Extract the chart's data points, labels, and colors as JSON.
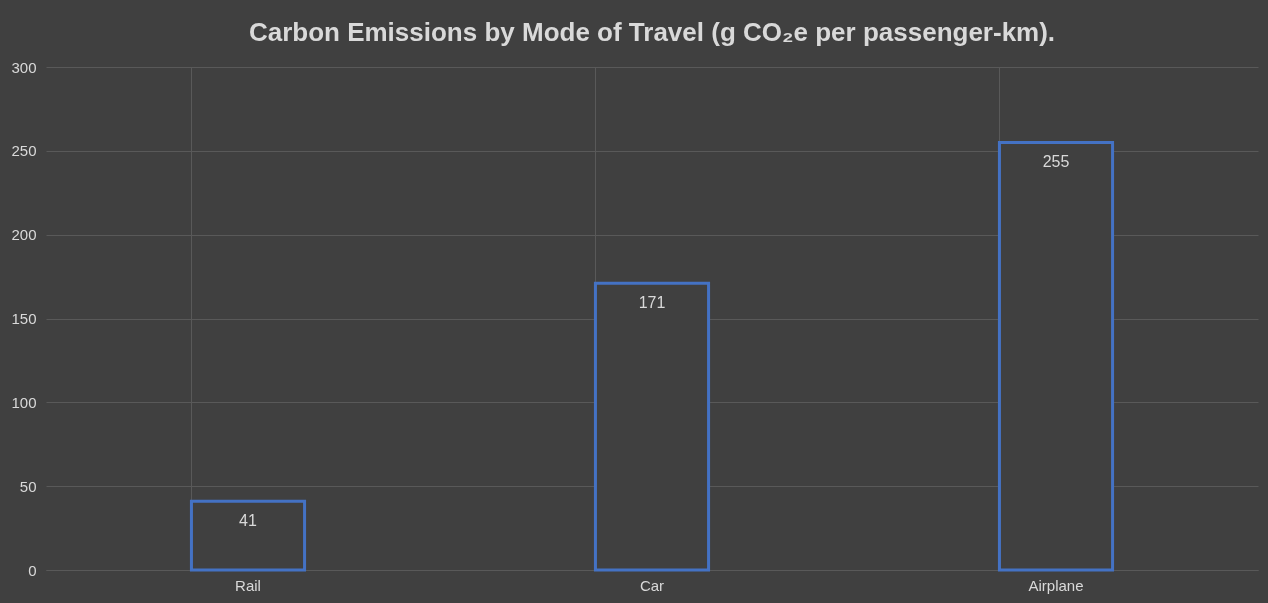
{
  "chart_data": {
    "type": "bar",
    "title": "Carbon Emissions by Mode of Travel (g CO₂e per passenger-km).",
    "categories": [
      "Rail",
      "Car",
      "Airplane"
    ],
    "values": [
      41,
      171,
      255
    ],
    "color": "#4472c4",
    "ylim": [
      0,
      300
    ],
    "yticks": [
      0,
      50,
      100,
      150,
      200,
      250,
      300
    ],
    "grid": true,
    "data_labels": true
  }
}
